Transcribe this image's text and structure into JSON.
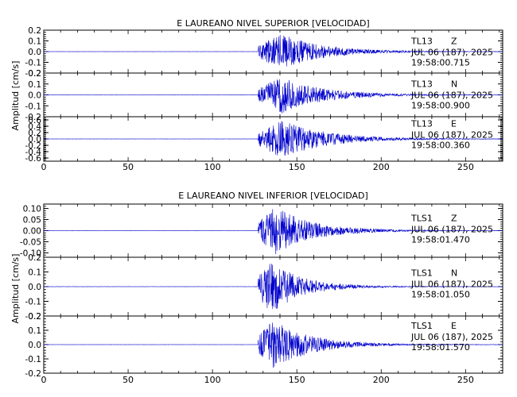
{
  "chart_data": [
    {
      "type": "line",
      "title": "E LAUREANO NIVEL SUPERIOR [VELOCIDAD]",
      "ylabel": "Amplitud [cm/s]",
      "xlabel": "",
      "xlim": [
        0,
        272
      ],
      "xticks": [
        0,
        50,
        100,
        150,
        200,
        250
      ],
      "series_color": "#0000cc",
      "traces": [
        {
          "station": "TL13",
          "component": "Z",
          "date": "JUL 06 (187), 2025",
          "time": "19:58:00.715",
          "ylim": [
            -0.2,
            0.2
          ],
          "yticks": [
            "0.2",
            "0.1",
            "0.0",
            "-0.1",
            "-0.2"
          ],
          "yvals": [
            0.2,
            0.1,
            0.0,
            -0.1,
            -0.2
          ],
          "onset": 127,
          "peak_time": 141,
          "peak_amp": 0.17,
          "decay": 24
        },
        {
          "station": "TL13",
          "component": "N",
          "date": "JUL 06 (187), 2025",
          "time": "19:58:00.900",
          "ylim": [
            -0.2,
            0.2
          ],
          "yticks": [
            "0.2",
            "0.1",
            "0.0",
            "-0.1",
            "-0.2"
          ],
          "yvals": [
            0.2,
            0.1,
            0.0,
            -0.1,
            -0.2
          ],
          "onset": 127,
          "peak_time": 141,
          "peak_amp": 0.17,
          "decay": 24
        },
        {
          "station": "TL13",
          "component": "E",
          "date": "JUL 06 (187), 2025",
          "time": "19:58:00.360",
          "ylim": [
            -0.7,
            0.7
          ],
          "yticks": [
            "0.6",
            "0.4",
            "0.2",
            "0.0",
            "-0.2",
            "-0.4",
            "-0.6"
          ],
          "yvals": [
            0.6,
            0.4,
            0.2,
            0.0,
            -0.2,
            -0.4,
            -0.6
          ],
          "onset": 127,
          "peak_time": 141,
          "peak_amp": 0.6,
          "decay": 26
        }
      ]
    },
    {
      "type": "line",
      "title": "E LAUREANO NIVEL INFERIOR [VELOCIDAD]",
      "ylabel": "Amplitud [cm/s]",
      "xlabel": "",
      "xlim": [
        0,
        272
      ],
      "xticks": [
        0,
        50,
        100,
        150,
        200,
        250
      ],
      "series_color": "#0000cc",
      "traces": [
        {
          "station": "TLS1",
          "component": "Z",
          "date": "JUL 06 (187), 2025",
          "time": "19:58:01.470",
          "ylim": [
            -0.12,
            0.12
          ],
          "yticks": [
            "0.10",
            "0.05",
            "0.00",
            "-0.05",
            "-0.10"
          ],
          "yvals": [
            0.1,
            0.05,
            0.0,
            -0.05,
            -0.1
          ],
          "onset": 127,
          "peak_time": 137,
          "peak_amp": 0.11,
          "decay": 22
        },
        {
          "station": "TLS1",
          "component": "N",
          "date": "JUL 06 (187), 2025",
          "time": "19:58:01.050",
          "ylim": [
            -0.2,
            0.2
          ],
          "yticks": [
            "0.2",
            "0.1",
            "0.0",
            "-0.1",
            "-0.2"
          ],
          "yvals": [
            0.2,
            0.1,
            0.0,
            -0.1,
            -0.2
          ],
          "onset": 127,
          "peak_time": 134,
          "peak_amp": 0.19,
          "decay": 18
        },
        {
          "station": "TLS1",
          "component": "E",
          "date": "JUL 06 (187), 2025",
          "time": "19:58:01.570",
          "ylim": [
            -0.2,
            0.2
          ],
          "yticks": [
            "0.2",
            "0.1",
            "0.0",
            "-0.1",
            "-0.2"
          ],
          "yvals": [
            0.2,
            0.1,
            0.0,
            -0.1,
            -0.2
          ],
          "onset": 127,
          "peak_time": 136,
          "peak_amp": 0.17,
          "decay": 22
        }
      ]
    }
  ]
}
